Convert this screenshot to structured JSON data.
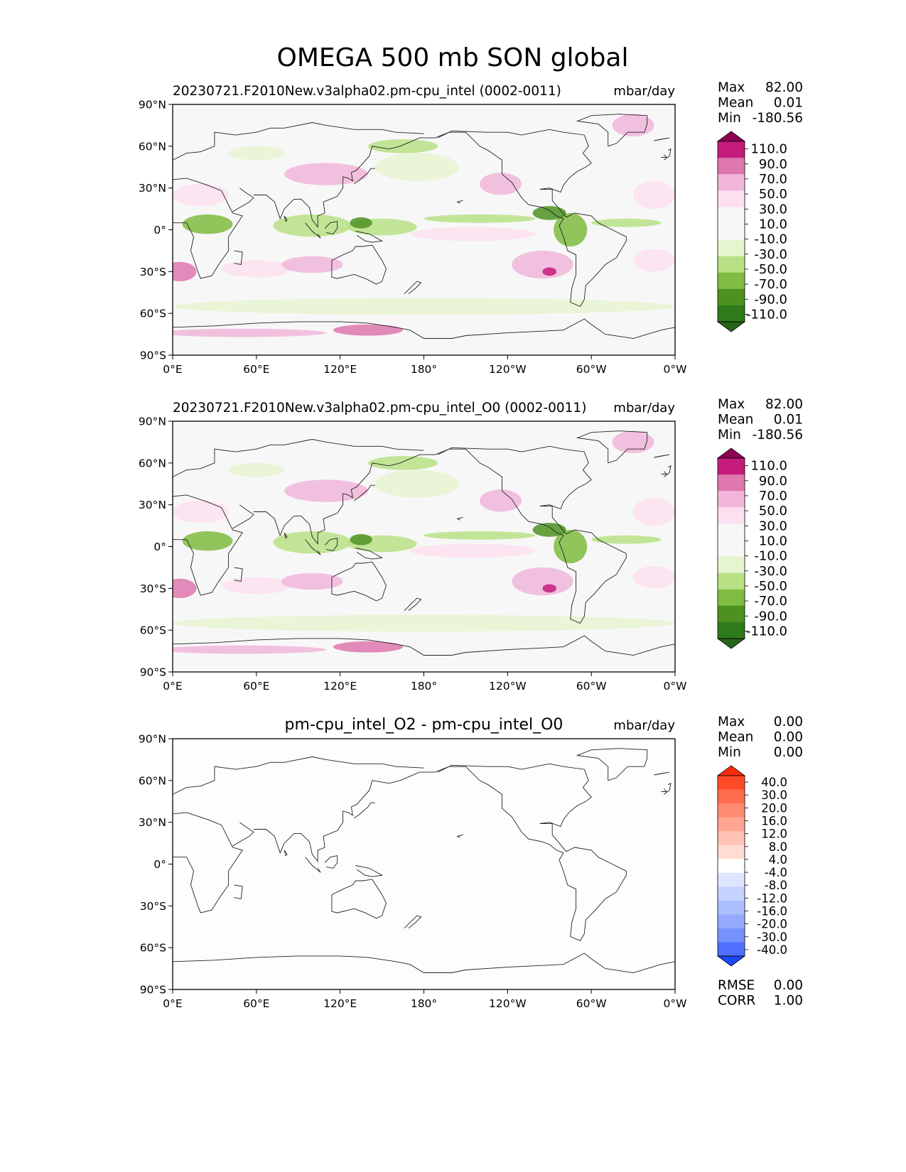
{
  "figure_title": "OMEGA 500 mb SON global",
  "chart_data": [
    {
      "type": "heatmap",
      "id": "test",
      "title": "20230721.F2010New.v3alpha02.pm-cpu_intel (0002-0011)",
      "units": "mbar/day",
      "stats": [
        {
          "label": "Max",
          "value": "82.00"
        },
        {
          "label": "Mean",
          "value": "0.01"
        },
        {
          "label": "Min",
          "value": "-180.56"
        }
      ],
      "x_ticks": [
        "0°E",
        "60°E",
        "120°E",
        "180°",
        "120°W",
        "60°W",
        "0°W"
      ],
      "y_ticks": [
        "90°N",
        "60°N",
        "30°N",
        "0°",
        "30°S",
        "60°S",
        "90°S"
      ],
      "xlim": [
        0,
        360
      ],
      "ylim": [
        -90,
        90
      ],
      "colorbar": {
        "levels": [
          "110.0",
          "90.0",
          "70.0",
          "50.0",
          "30.0",
          "10.0",
          "-10.0",
          "-30.0",
          "-50.0",
          "-70.0",
          "-90.0",
          "-110.0"
        ],
        "colors": [
          "#8e0152",
          "#c51b7d",
          "#de77ae",
          "#f1b6da",
          "#fde0ef",
          "#f7f7f7",
          "#f7f7f7",
          "#e6f5d0",
          "#b8e186",
          "#7fbc41",
          "#4d9221",
          "#2f7a1a",
          "#276419"
        ]
      },
      "blobs": [
        {
          "lon": 25,
          "lat": 4,
          "rx": 18,
          "ry": 7,
          "c": "#7fbc41"
        },
        {
          "lon": 20,
          "lat": 25,
          "rx": 20,
          "ry": 8,
          "c": "#fde0ef"
        },
        {
          "lon": 5,
          "lat": -30,
          "rx": 12,
          "ry": 7,
          "c": "#de77ae"
        },
        {
          "lon": 60,
          "lat": -28,
          "rx": 25,
          "ry": 6,
          "c": "#fde0ef"
        },
        {
          "lon": 100,
          "lat": -25,
          "rx": 22,
          "ry": 6,
          "c": "#f1b6da"
        },
        {
          "lon": 100,
          "lat": 3,
          "rx": 28,
          "ry": 8,
          "c": "#b8e186"
        },
        {
          "lon": 150,
          "lat": 2,
          "rx": 25,
          "ry": 6,
          "c": "#b8e186"
        },
        {
          "lon": 135,
          "lat": 5,
          "rx": 8,
          "ry": 4,
          "c": "#4d9221"
        },
        {
          "lon": 110,
          "lat": 40,
          "rx": 30,
          "ry": 8,
          "c": "#f1b6da"
        },
        {
          "lon": 175,
          "lat": 45,
          "rx": 30,
          "ry": 10,
          "c": "#e6f5d0"
        },
        {
          "lon": 220,
          "lat": 8,
          "rx": 40,
          "ry": 3,
          "c": "#b8e186"
        },
        {
          "lon": 235,
          "lat": 33,
          "rx": 15,
          "ry": 8,
          "c": "#f1b6da"
        },
        {
          "lon": 215,
          "lat": -3,
          "rx": 45,
          "ry": 5,
          "c": "#fde0ef"
        },
        {
          "lon": 265,
          "lat": -25,
          "rx": 22,
          "ry": 10,
          "c": "#f1b6da"
        },
        {
          "lon": 270,
          "lat": -30,
          "rx": 5,
          "ry": 3,
          "c": "#c51b7d"
        },
        {
          "lon": 285,
          "lat": 0,
          "rx": 12,
          "ry": 12,
          "c": "#7fbc41"
        },
        {
          "lon": 270,
          "lat": 12,
          "rx": 12,
          "ry": 5,
          "c": "#4d9221"
        },
        {
          "lon": 325,
          "lat": 5,
          "rx": 25,
          "ry": 3,
          "c": "#b8e186"
        },
        {
          "lon": 345,
          "lat": 25,
          "rx": 15,
          "ry": 10,
          "c": "#fde0ef"
        },
        {
          "lon": 345,
          "lat": -22,
          "rx": 15,
          "ry": 8,
          "c": "#fde0ef"
        },
        {
          "lon": 210,
          "lat": -40,
          "rx": 60,
          "ry": 8,
          "c": "#f7f7f7"
        },
        {
          "lon": 180,
          "lat": -55,
          "rx": 180,
          "ry": 6,
          "c": "#e6f5d0"
        },
        {
          "lon": 140,
          "lat": -72,
          "rx": 25,
          "ry": 4,
          "c": "#de77ae"
        },
        {
          "lon": 50,
          "lat": -74,
          "rx": 60,
          "ry": 3,
          "c": "#f1b6da"
        },
        {
          "lon": 330,
          "lat": 75,
          "rx": 15,
          "ry": 8,
          "c": "#f1b6da"
        },
        {
          "lon": 60,
          "lat": 55,
          "rx": 20,
          "ry": 5,
          "c": "#e6f5d0"
        },
        {
          "lon": 165,
          "lat": 60,
          "rx": 25,
          "ry": 5,
          "c": "#b8e186"
        }
      ]
    },
    {
      "type": "heatmap",
      "id": "reference",
      "title": "20230721.F2010New.v3alpha02.pm-cpu_intel_O0 (0002-0011)",
      "units": "mbar/day",
      "stats": [
        {
          "label": "Max",
          "value": "82.00"
        },
        {
          "label": "Mean",
          "value": "0.01"
        },
        {
          "label": "Min",
          "value": "-180.56"
        }
      ],
      "x_ticks": [
        "0°E",
        "60°E",
        "120°E",
        "180°",
        "120°W",
        "60°W",
        "0°W"
      ],
      "y_ticks": [
        "90°N",
        "60°N",
        "30°N",
        "0°",
        "30°S",
        "60°S",
        "90°S"
      ],
      "xlim": [
        0,
        360
      ],
      "ylim": [
        -90,
        90
      ],
      "colorbar": {
        "levels": [
          "110.0",
          "90.0",
          "70.0",
          "50.0",
          "30.0",
          "10.0",
          "-10.0",
          "-30.0",
          "-50.0",
          "-70.0",
          "-90.0",
          "-110.0"
        ],
        "colors": [
          "#8e0152",
          "#c51b7d",
          "#de77ae",
          "#f1b6da",
          "#fde0ef",
          "#f7f7f7",
          "#f7f7f7",
          "#e6f5d0",
          "#b8e186",
          "#7fbc41",
          "#4d9221",
          "#2f7a1a",
          "#276419"
        ]
      },
      "blobs": [
        {
          "lon": 25,
          "lat": 4,
          "rx": 18,
          "ry": 7,
          "c": "#7fbc41"
        },
        {
          "lon": 20,
          "lat": 25,
          "rx": 20,
          "ry": 8,
          "c": "#fde0ef"
        },
        {
          "lon": 5,
          "lat": -30,
          "rx": 12,
          "ry": 7,
          "c": "#de77ae"
        },
        {
          "lon": 60,
          "lat": -28,
          "rx": 25,
          "ry": 6,
          "c": "#fde0ef"
        },
        {
          "lon": 100,
          "lat": -25,
          "rx": 22,
          "ry": 6,
          "c": "#f1b6da"
        },
        {
          "lon": 100,
          "lat": 3,
          "rx": 28,
          "ry": 8,
          "c": "#b8e186"
        },
        {
          "lon": 150,
          "lat": 2,
          "rx": 25,
          "ry": 6,
          "c": "#b8e186"
        },
        {
          "lon": 135,
          "lat": 5,
          "rx": 8,
          "ry": 4,
          "c": "#4d9221"
        },
        {
          "lon": 110,
          "lat": 40,
          "rx": 30,
          "ry": 8,
          "c": "#f1b6da"
        },
        {
          "lon": 175,
          "lat": 45,
          "rx": 30,
          "ry": 10,
          "c": "#e6f5d0"
        },
        {
          "lon": 220,
          "lat": 8,
          "rx": 40,
          "ry": 3,
          "c": "#b8e186"
        },
        {
          "lon": 235,
          "lat": 33,
          "rx": 15,
          "ry": 8,
          "c": "#f1b6da"
        },
        {
          "lon": 215,
          "lat": -3,
          "rx": 45,
          "ry": 5,
          "c": "#fde0ef"
        },
        {
          "lon": 265,
          "lat": -25,
          "rx": 22,
          "ry": 10,
          "c": "#f1b6da"
        },
        {
          "lon": 270,
          "lat": -30,
          "rx": 5,
          "ry": 3,
          "c": "#c51b7d"
        },
        {
          "lon": 285,
          "lat": 0,
          "rx": 12,
          "ry": 12,
          "c": "#7fbc41"
        },
        {
          "lon": 270,
          "lat": 12,
          "rx": 12,
          "ry": 5,
          "c": "#4d9221"
        },
        {
          "lon": 325,
          "lat": 5,
          "rx": 25,
          "ry": 3,
          "c": "#b8e186"
        },
        {
          "lon": 345,
          "lat": 25,
          "rx": 15,
          "ry": 10,
          "c": "#fde0ef"
        },
        {
          "lon": 345,
          "lat": -22,
          "rx": 15,
          "ry": 8,
          "c": "#fde0ef"
        },
        {
          "lon": 210,
          "lat": -40,
          "rx": 60,
          "ry": 8,
          "c": "#f7f7f7"
        },
        {
          "lon": 180,
          "lat": -55,
          "rx": 180,
          "ry": 6,
          "c": "#e6f5d0"
        },
        {
          "lon": 140,
          "lat": -72,
          "rx": 25,
          "ry": 4,
          "c": "#de77ae"
        },
        {
          "lon": 50,
          "lat": -74,
          "rx": 60,
          "ry": 3,
          "c": "#f1b6da"
        },
        {
          "lon": 330,
          "lat": 75,
          "rx": 15,
          "ry": 8,
          "c": "#f1b6da"
        },
        {
          "lon": 60,
          "lat": 55,
          "rx": 20,
          "ry": 5,
          "c": "#e6f5d0"
        },
        {
          "lon": 165,
          "lat": 60,
          "rx": 25,
          "ry": 5,
          "c": "#b8e186"
        }
      ]
    },
    {
      "type": "heatmap",
      "id": "difference",
      "title": "pm-cpu_intel_O2 - pm-cpu_intel_O0",
      "units": "mbar/day",
      "stats": [
        {
          "label": "Max",
          "value": "0.00"
        },
        {
          "label": "Mean",
          "value": "0.00"
        },
        {
          "label": "Min",
          "value": "0.00"
        }
      ],
      "bottom_stats": [
        {
          "label": "RMSE",
          "value": "0.00"
        },
        {
          "label": "CORR",
          "value": "1.00"
        }
      ],
      "x_ticks": [
        "0°E",
        "60°E",
        "120°E",
        "180°",
        "120°W",
        "60°W",
        "0°W"
      ],
      "y_ticks": [
        "90°N",
        "60°N",
        "30°N",
        "0°",
        "30°S",
        "60°S",
        "90°S"
      ],
      "xlim": [
        0,
        360
      ],
      "ylim": [
        -90,
        90
      ],
      "colorbar": {
        "levels": [
          "40.0",
          "30.0",
          "20.0",
          "16.0",
          "12.0",
          "8.0",
          "4.0",
          "-4.0",
          "-8.0",
          "-12.0",
          "-16.0",
          "-20.0",
          "-30.0",
          "-40.0"
        ],
        "colors": [
          "#ff2a0a",
          "#ff4a28",
          "#ff6e4e",
          "#ff8b70",
          "#ffa592",
          "#ffc2b4",
          "#ffdcd3",
          "#ffffff",
          "#dde5ff",
          "#c6d2ff",
          "#aebfff",
          "#95aaff",
          "#7592ff",
          "#4f70ff",
          "#1c48ff"
        ]
      },
      "blobs": []
    }
  ]
}
